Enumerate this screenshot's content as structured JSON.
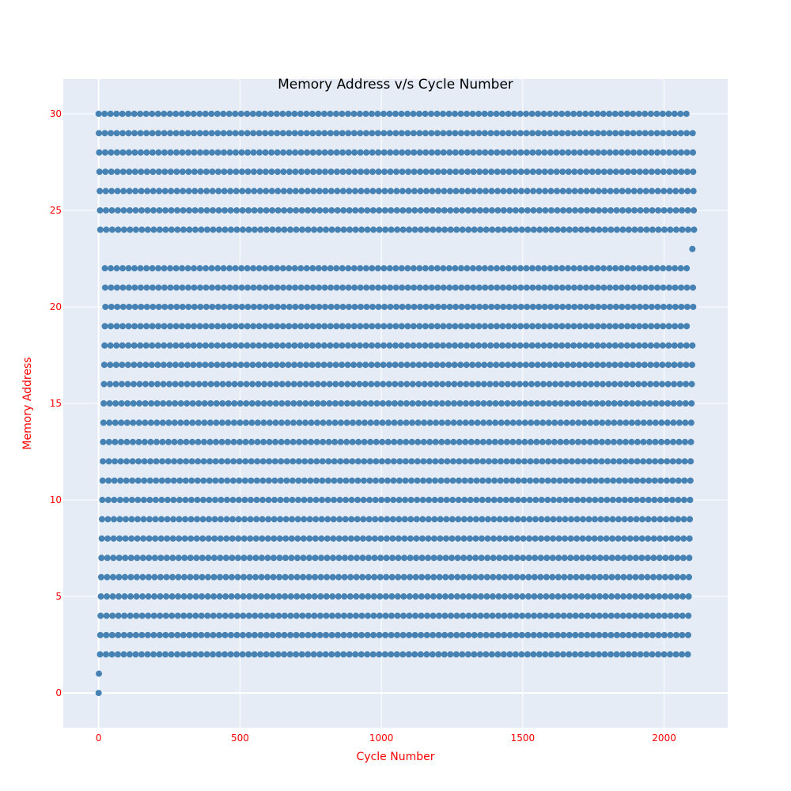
{
  "chart_data": {
    "type": "scatter",
    "title": "Memory Address v/s Cycle Number",
    "xlabel": "Cycle Number",
    "ylabel": "Memory Address",
    "xlim": [
      -125,
      2225
    ],
    "ylim": [
      -1.8,
      31.8
    ],
    "x_ticks": [
      0,
      500,
      1000,
      1500,
      2000
    ],
    "y_ticks": [
      0,
      5,
      10,
      15,
      20,
      25,
      30
    ],
    "grid": true,
    "legend": "none",
    "colors": {
      "marker": "#4682b4",
      "plot_background": "#e5ecf6",
      "grid": "#ffffff",
      "axis_text": "#ff0000",
      "title_text": "#000000"
    },
    "series": [
      {
        "values": [
          {
            "x": 0,
            "y": 0
          },
          {
            "x": 1,
            "y": 1
          },
          {
            "x": 2100,
            "y": 23
          }
        ],
        "bands": [
          {
            "y": 30,
            "x_start": 0,
            "x_end": 2079,
            "step": 21
          },
          {
            "y": 29,
            "x_start": 1,
            "x_end": 2101,
            "step": 21
          },
          {
            "y": 28,
            "x_start": 2,
            "x_end": 2102,
            "step": 21
          },
          {
            "y": 27,
            "x_start": 3,
            "x_end": 2103,
            "step": 21
          },
          {
            "y": 26,
            "x_start": 4,
            "x_end": 2104,
            "step": 21
          },
          {
            "y": 25,
            "x_start": 5,
            "x_end": 2105,
            "step": 21
          },
          {
            "y": 24,
            "x_start": 6,
            "x_end": 2106,
            "step": 21
          },
          {
            "y": 22,
            "x_start": 22,
            "x_end": 2080,
            "step": 21
          },
          {
            "y": 21,
            "x_start": 23,
            "x_end": 2102,
            "step": 21
          },
          {
            "y": 20,
            "x_start": 24,
            "x_end": 2103,
            "step": 21
          },
          {
            "y": 19,
            "x_start": 22,
            "x_end": 2080,
            "step": 21
          },
          {
            "y": 18,
            "x_start": 21,
            "x_end": 2100,
            "step": 21
          },
          {
            "y": 17,
            "x_start": 20,
            "x_end": 2099,
            "step": 21
          },
          {
            "y": 16,
            "x_start": 19,
            "x_end": 2098,
            "step": 21
          },
          {
            "y": 15,
            "x_start": 18,
            "x_end": 2097,
            "step": 21
          },
          {
            "y": 14,
            "x_start": 17,
            "x_end": 2096,
            "step": 21
          },
          {
            "y": 13,
            "x_start": 16,
            "x_end": 2095,
            "step": 21
          },
          {
            "y": 12,
            "x_start": 15,
            "x_end": 2094,
            "step": 21
          },
          {
            "y": 11,
            "x_start": 14,
            "x_end": 2093,
            "step": 21
          },
          {
            "y": 10,
            "x_start": 13,
            "x_end": 2092,
            "step": 21
          },
          {
            "y": 9,
            "x_start": 12,
            "x_end": 2091,
            "step": 21
          },
          {
            "y": 8,
            "x_start": 11,
            "x_end": 2090,
            "step": 21
          },
          {
            "y": 7,
            "x_start": 10,
            "x_end": 2089,
            "step": 21
          },
          {
            "y": 6,
            "x_start": 9,
            "x_end": 2088,
            "step": 21
          },
          {
            "y": 5,
            "x_start": 8,
            "x_end": 2087,
            "step": 21
          },
          {
            "y": 4,
            "x_start": 7,
            "x_end": 2086,
            "step": 21
          },
          {
            "y": 3,
            "x_start": 6,
            "x_end": 2085,
            "step": 21
          },
          {
            "y": 2,
            "x_start": 5,
            "x_end": 2084,
            "step": 21
          }
        ]
      }
    ]
  }
}
